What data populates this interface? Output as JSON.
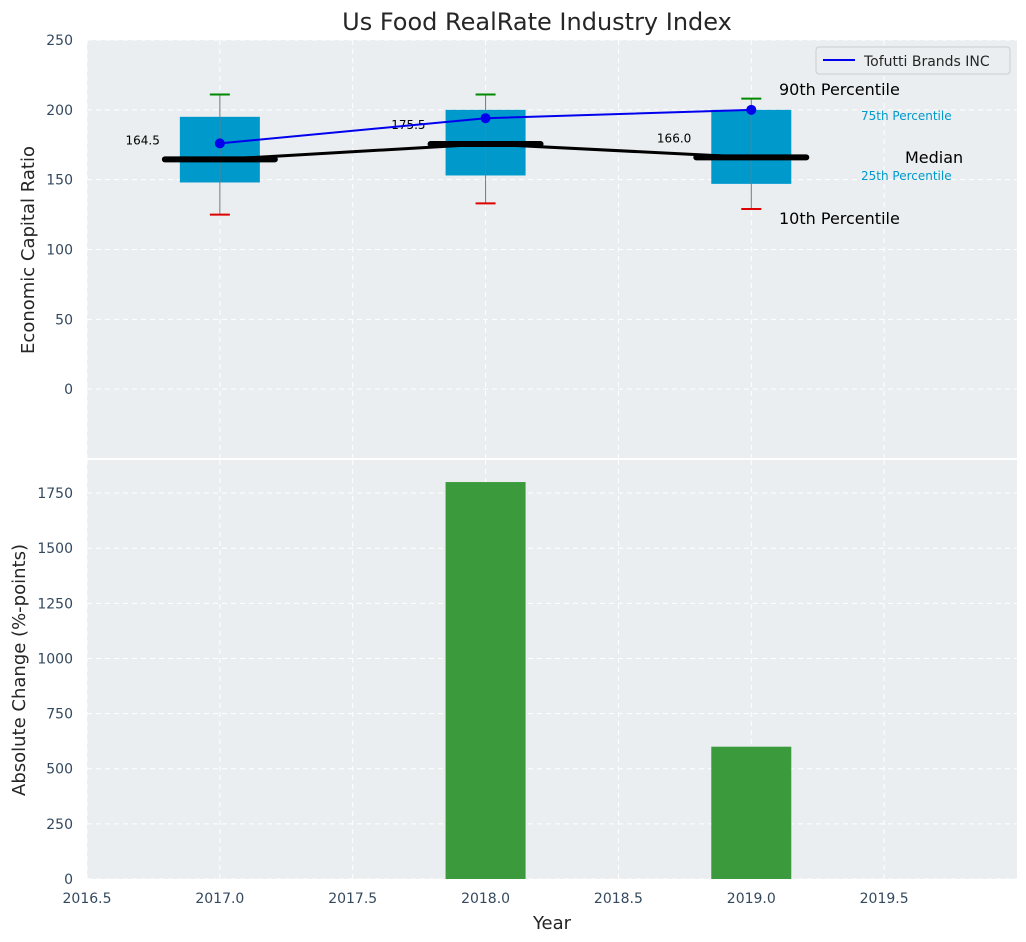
{
  "chart_data": [
    {
      "type": "box",
      "title": "Us Food RealRate Industry Index",
      "xlabel": "",
      "ylabel": "Economic Capital Ratio",
      "xlim": [
        2016.5,
        2020.0
      ],
      "ylim": [
        -50,
        250
      ],
      "yticks": [
        0,
        50,
        100,
        150,
        200,
        250
      ],
      "grid": true,
      "legend_position": "top-right",
      "colors": {
        "box": "#0099cc",
        "median": "#000000",
        "series": "#0000ee",
        "whisker_high": "#008800",
        "whisker_low": "#dd0000",
        "background": "#eaeef0"
      },
      "boxes": [
        {
          "x": 2017.0,
          "p10": 125,
          "p25": 148,
          "median": 164.5,
          "p75": 195,
          "p90": 211,
          "median_label": "164.5"
        },
        {
          "x": 2018.0,
          "p10": 133,
          "p25": 153,
          "median": 175.5,
          "p75": 200,
          "p90": 211,
          "median_label": "175.5"
        },
        {
          "x": 2019.0,
          "p10": 129,
          "p25": 147,
          "median": 166.0,
          "p75": 200,
          "p90": 208,
          "median_label": "166.0"
        }
      ],
      "series": [
        {
          "name": "Tofutti Brands INC",
          "x": [
            2017.0,
            2018.0,
            2019.0
          ],
          "values": [
            176,
            194,
            200
          ]
        }
      ],
      "annotations": {
        "p90": "90th Percentile",
        "p75": "75th Percentile",
        "median": "Median",
        "p25": "25th Percentile",
        "p10": "10th Percentile"
      }
    },
    {
      "type": "bar",
      "xlabel": "Year",
      "ylabel": "Absolute Change (%-points)",
      "xlim": [
        2016.5,
        2020.0
      ],
      "ylim": [
        0,
        1900
      ],
      "xticks": [
        2016.5,
        2017.0,
        2017.5,
        2018.0,
        2018.5,
        2019.0,
        2019.5
      ],
      "xtick_labels": [
        "2016.5",
        "2017.0",
        "2017.5",
        "2018.0",
        "2018.5",
        "2019.0",
        "2019.5"
      ],
      "yticks": [
        0,
        250,
        500,
        750,
        1000,
        1250,
        1500,
        1750
      ],
      "grid": true,
      "color": "#3a9a3c",
      "x": [
        2017.0,
        2018.0,
        2019.0
      ],
      "values": [
        0,
        1800,
        600
      ]
    }
  ]
}
